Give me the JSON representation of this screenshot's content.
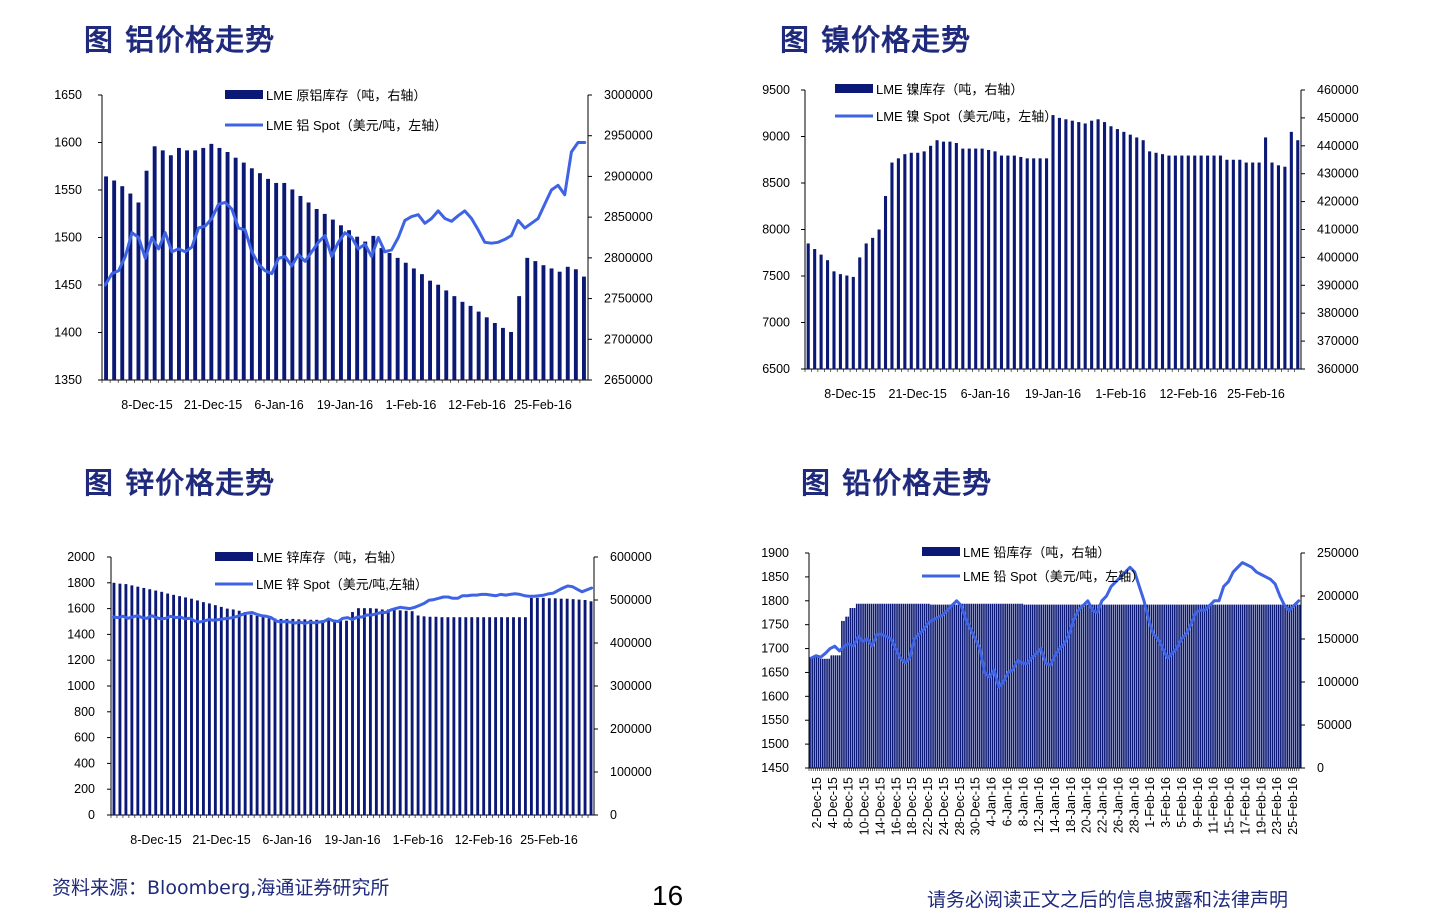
{
  "colors": {
    "title": "#1f2a7c",
    "bar": "#0b1875",
    "line": "#3e63e4"
  },
  "footer": {
    "source": "资料来源：Bloomberg,海通证券研究所",
    "page": "16",
    "disclaimer": "请务必阅读正文之后的信息披露和法律声明"
  },
  "chart_data": [
    {
      "type": "bar+line",
      "title": "图 铝价格走势",
      "legend": [
        "LME 原铝库存（吨，右轴）",
        "LME 铝 Spot（美元/吨，左轴）"
      ],
      "x_tick_labels": [
        "8-Dec-15",
        "21-Dec-15",
        "6-Jan-16",
        "19-Jan-16",
        "1-Feb-16",
        "12-Feb-16",
        "25-Feb-16"
      ],
      "left_axis": {
        "min": 1350,
        "max": 1650,
        "ticks": [
          1350,
          1400,
          1450,
          1500,
          1550,
          1600,
          1650
        ]
      },
      "right_axis": {
        "min": 2650000,
        "max": 3000000,
        "ticks": [
          2650000,
          2700000,
          2750000,
          2800000,
          2850000,
          2900000,
          2950000,
          3000000
        ]
      },
      "bar_series_right_axis": [
        2900000,
        2895000,
        2888000,
        2879000,
        2868000,
        2907000,
        2937000,
        2932000,
        2926000,
        2935000,
        2932000,
        2932000,
        2935000,
        2940000,
        2935000,
        2930000,
        2923000,
        2917000,
        2910000,
        2904000,
        2897000,
        2892000,
        2892000,
        2884000,
        2876000,
        2868000,
        2860000,
        2854000,
        2847000,
        2840000,
        2834000,
        2826000,
        2820000,
        2827000,
        2812000,
        2806000,
        2800000,
        2794000,
        2787000,
        2780000,
        2772000,
        2767000,
        2760000,
        2753000,
        2746000,
        2741000,
        2734000,
        2727000,
        2720000,
        2714000,
        2709000,
        2753000,
        2800000,
        2796000,
        2791000,
        2787000,
        2783000,
        2789000,
        2786000,
        2777000
      ],
      "line_series_left_axis": [
        1450,
        1462,
        1465,
        1480,
        1505,
        1500,
        1478,
        1500,
        1488,
        1505,
        1485,
        1488,
        1485,
        1490,
        1510,
        1512,
        1520,
        1535,
        1537,
        1530,
        1510,
        1508,
        1485,
        1472,
        1465,
        1462,
        1478,
        1480,
        1470,
        1482,
        1475,
        1485,
        1495,
        1502,
        1480,
        1495,
        1505,
        1500,
        1488,
        1493,
        1480,
        1500,
        1485,
        1487,
        1500,
        1518,
        1522,
        1524,
        1515,
        1520,
        1528,
        1520,
        1517,
        1523,
        1528,
        1520,
        1508,
        1495,
        1494,
        1495,
        1498,
        1502,
        1518,
        1510,
        1515,
        1520,
        1535,
        1550,
        1555,
        1545,
        1590,
        1600,
        1600
      ]
    },
    {
      "type": "bar+line",
      "title": "图 镍价格走势",
      "legend": [
        "LME 镍库存（吨，右轴）",
        "LME 镍 Spot（美元/吨，左轴）"
      ],
      "x_tick_labels": [
        "8-Dec-15",
        "21-Dec-15",
        "6-Jan-16",
        "19-Jan-16",
        "1-Feb-16",
        "12-Feb-16",
        "25-Feb-16"
      ],
      "left_axis": {
        "min": 6500,
        "max": 9500,
        "ticks": [
          6500,
          7000,
          7500,
          8000,
          8500,
          9000,
          9500
        ]
      },
      "right_axis": {
        "min": 360000,
        "max": 460000,
        "ticks": [
          360000,
          370000,
          380000,
          390000,
          400000,
          410000,
          420000,
          430000,
          440000,
          450000,
          460000
        ]
      },
      "bar_series_right_axis": [
        405000,
        403000,
        401000,
        399000,
        395000,
        394000,
        393500,
        393000,
        400000,
        405000,
        407000,
        410000,
        422000,
        434000,
        435500,
        437000,
        437500,
        437500,
        438000,
        440000,
        442000,
        441500,
        441500,
        441000,
        439000,
        439000,
        439000,
        439000,
        438500,
        438000,
        436500,
        436500,
        436500,
        436000,
        435500,
        435500,
        435500,
        435500,
        451000,
        450000,
        449500,
        449000,
        448500,
        448000,
        449000,
        449500,
        448500,
        447000,
        446000,
        445000,
        444000,
        443000,
        442000,
        438000,
        437500,
        437000,
        436500,
        436500,
        436500,
        436500,
        436500,
        436500,
        436500,
        436500,
        436500,
        435000,
        435000,
        435000,
        434000,
        434000,
        434000,
        443000,
        434000,
        433000,
        432500,
        445000,
        442000
      ]
    },
    {
      "type": "bar+line",
      "title": "图 锌价格走势",
      "legend": [
        "LME 锌库存（吨，右轴）",
        "LME 锌 Spot（美元/吨,左轴）"
      ],
      "x_tick_labels": [
        "8-Dec-15",
        "21-Dec-15",
        "6-Jan-16",
        "19-Jan-16",
        "1-Feb-16",
        "12-Feb-16",
        "25-Feb-16"
      ],
      "left_axis": {
        "min": 0,
        "max": 2000,
        "ticks": [
          0,
          200,
          400,
          600,
          800,
          1000,
          1200,
          1400,
          1600,
          1800,
          2000
        ]
      },
      "right_axis": {
        "min": 0,
        "max": 600000,
        "ticks": [
          0,
          100000,
          200000,
          300000,
          400000,
          500000,
          600000
        ]
      },
      "bar_series_right_axis": [
        540000,
        538000,
        537000,
        534000,
        531000,
        528000,
        525000,
        522000,
        519000,
        515000,
        512000,
        509000,
        506000,
        503000,
        499000,
        495000,
        492000,
        488000,
        484000,
        480000,
        478000,
        475000,
        472000,
        466000,
        463000,
        460000,
        457000,
        457000,
        456000,
        456000,
        456000,
        455000,
        455000,
        454000,
        454000,
        453000,
        453000,
        453000,
        452000,
        452000,
        472000,
        481000,
        481000,
        481000,
        480000,
        478000,
        478000,
        477000,
        476000,
        475000,
        474000,
        464000,
        462000,
        461000,
        461000,
        460000,
        460000,
        460000,
        460000,
        460000,
        460000,
        460000,
        460000,
        460000,
        460000,
        460000,
        460000,
        460000,
        460000,
        460000,
        505000,
        505000,
        505000,
        504000,
        504000,
        503000,
        503000,
        502000,
        501000,
        500000,
        497000
      ],
      "line_series_left_axis": [
        1535,
        1530,
        1540,
        1525,
        1535,
        1545,
        1530,
        1525,
        1545,
        1530,
        1520,
        1525,
        1540,
        1530,
        1535,
        1520,
        1525,
        1505,
        1495,
        1505,
        1515,
        1510,
        1515,
        1520,
        1525,
        1530,
        1540,
        1555,
        1565,
        1570,
        1555,
        1545,
        1540,
        1530,
        1505,
        1495,
        1500,
        1495,
        1488,
        1495,
        1485,
        1495,
        1490,
        1495,
        1500,
        1520,
        1505,
        1500,
        1525,
        1530,
        1515,
        1535,
        1535,
        1550,
        1550,
        1560,
        1570,
        1570,
        1590,
        1600,
        1610,
        1605,
        1600,
        1610,
        1625,
        1640,
        1665,
        1670,
        1680,
        1690,
        1690,
        1680,
        1680,
        1700,
        1700,
        1705,
        1705,
        1710,
        1710,
        1705,
        1700,
        1710,
        1705,
        1710,
        1715,
        1710,
        1700,
        1695,
        1695,
        1700,
        1705,
        1715,
        1720,
        1740,
        1760,
        1775,
        1770,
        1750,
        1730,
        1745,
        1760
      ]
    },
    {
      "type": "bar+line",
      "title": "图 铅价格走势",
      "legend": [
        "LME 铅库存（吨，右轴）",
        "LME 铅 Spot（美元/吨，左轴）"
      ],
      "x_tick_labels": [
        "2-Dec-15",
        "4-Dec-15",
        "8-Dec-15",
        "10-Dec-15",
        "14-Dec-15",
        "16-Dec-15",
        "18-Dec-15",
        "22-Dec-15",
        "24-Dec-15",
        "28-Dec-15",
        "30-Dec-15",
        "4-Jan-16",
        "6-Jan-16",
        "8-Jan-16",
        "12-Jan-16",
        "14-Jan-16",
        "18-Jan-16",
        "20-Jan-16",
        "22-Jan-16",
        "26-Jan-16",
        "28-Jan-16",
        "1-Feb-16",
        "3-Feb-16",
        "5-Feb-16",
        "9-Feb-16",
        "11-Feb-16",
        "15-Feb-16",
        "17-Feb-16",
        "19-Feb-16",
        "23-Feb-16",
        "25-Feb-16"
      ],
      "left_axis": {
        "min": 1450,
        "max": 1900,
        "ticks": [
          1450,
          1500,
          1550,
          1600,
          1650,
          1700,
          1750,
          1800,
          1850,
          1900
        ]
      },
      "right_axis": {
        "min": 0,
        "max": 250000,
        "ticks": [
          0,
          50000,
          100000,
          150000,
          200000,
          250000
        ]
      },
      "bar_series_right_axis": [
        129000,
        129000,
        129000,
        129000,
        129000,
        127000,
        127000,
        127000,
        127000,
        127000,
        131000,
        131000,
        131000,
        131000,
        131000,
        171000,
        171000,
        176000,
        176000,
        186000,
        186000,
        186000,
        191000,
        191000,
        191000,
        191000,
        191000,
        191000,
        191000,
        191000,
        191000,
        191000,
        191000,
        191000,
        191000,
        191000,
        191000,
        191000,
        191000,
        191000,
        191000,
        191000,
        191000,
        191000,
        191000,
        191000,
        191000,
        191000,
        191000,
        191000,
        191000,
        191000,
        191000,
        191000,
        191000,
        191000,
        191000,
        190000,
        190000,
        190000,
        190000,
        190000,
        190000,
        190000,
        190000,
        190000,
        190000,
        190000,
        190000,
        190000,
        190000,
        190000,
        191000,
        191000,
        191000,
        191000,
        191000,
        191000,
        191000,
        191000,
        191000,
        191000,
        191000,
        191000,
        191000,
        191000,
        191000,
        191000,
        191000,
        191000,
        191000,
        191000,
        191000,
        191000,
        191000,
        191000,
        191000,
        191000,
        191000,
        191000,
        191000,
        190000,
        190000,
        190000,
        190000,
        190000,
        190000,
        190000,
        190000,
        190000,
        190000,
        190000,
        190000,
        190000,
        190000,
        190000,
        190000,
        190000,
        190000,
        190000,
        190000,
        190000,
        190000,
        190000,
        190000,
        190000,
        190000,
        190000,
        190000,
        190000,
        190000,
        190000,
        190000,
        190000,
        190000,
        190000,
        190000,
        190000,
        190000,
        190000,
        190000,
        190000,
        190000,
        190000,
        190000,
        190000,
        190000,
        190000,
        190000,
        190000,
        190000,
        190000,
        190000,
        190000,
        190000,
        190000,
        190000,
        190000,
        190000,
        190000,
        190000,
        190000,
        190000,
        190000,
        190000,
        190000,
        190000,
        190000,
        190000,
        190000,
        190000,
        190000,
        190000,
        190000,
        190000,
        190000,
        190000,
        190000,
        190000,
        190000,
        190000,
        190000,
        190000,
        190000,
        190000,
        190000,
        190000,
        190000,
        190000,
        190000,
        190000,
        190000,
        190000,
        190000,
        190000,
        190000,
        190000,
        190000,
        190000,
        190000,
        190000,
        190000,
        190000,
        190000,
        190000,
        190000,
        190000,
        190000,
        190000,
        190000,
        190000,
        190000,
        190000,
        190000,
        190000,
        190000,
        190000,
        190000,
        190000,
        190000,
        190000,
        190000,
        190000,
        190000,
        190000,
        190000,
        190000,
        190000,
        190000,
        190000,
        190000,
        190000
      ],
      "line_series_left_axis": [
        1680,
        1685,
        1682,
        1690,
        1700,
        1705,
        1695,
        1705,
        1710,
        1705,
        1725,
        1715,
        1720,
        1705,
        1730,
        1730,
        1725,
        1720,
        1700,
        1680,
        1670,
        1680,
        1720,
        1730,
        1740,
        1755,
        1760,
        1765,
        1770,
        1780,
        1790,
        1800,
        1790,
        1760,
        1740,
        1720,
        1700,
        1650,
        1640,
        1655,
        1620,
        1630,
        1650,
        1655,
        1675,
        1670,
        1668,
        1680,
        1690,
        1700,
        1670,
        1665,
        1685,
        1700,
        1710,
        1730,
        1760,
        1780,
        1790,
        1800,
        1780,
        1775,
        1800,
        1810,
        1830,
        1840,
        1850,
        1860,
        1870,
        1860,
        1830,
        1800,
        1760,
        1730,
        1720,
        1700,
        1680,
        1690,
        1700,
        1720,
        1730,
        1750,
        1775,
        1780,
        1780,
        1790,
        1800,
        1800,
        1830,
        1840,
        1860,
        1870,
        1880,
        1875,
        1870,
        1860,
        1855,
        1850,
        1845,
        1835,
        1810,
        1790,
        1780,
        1790,
        1800
      ]
    }
  ]
}
